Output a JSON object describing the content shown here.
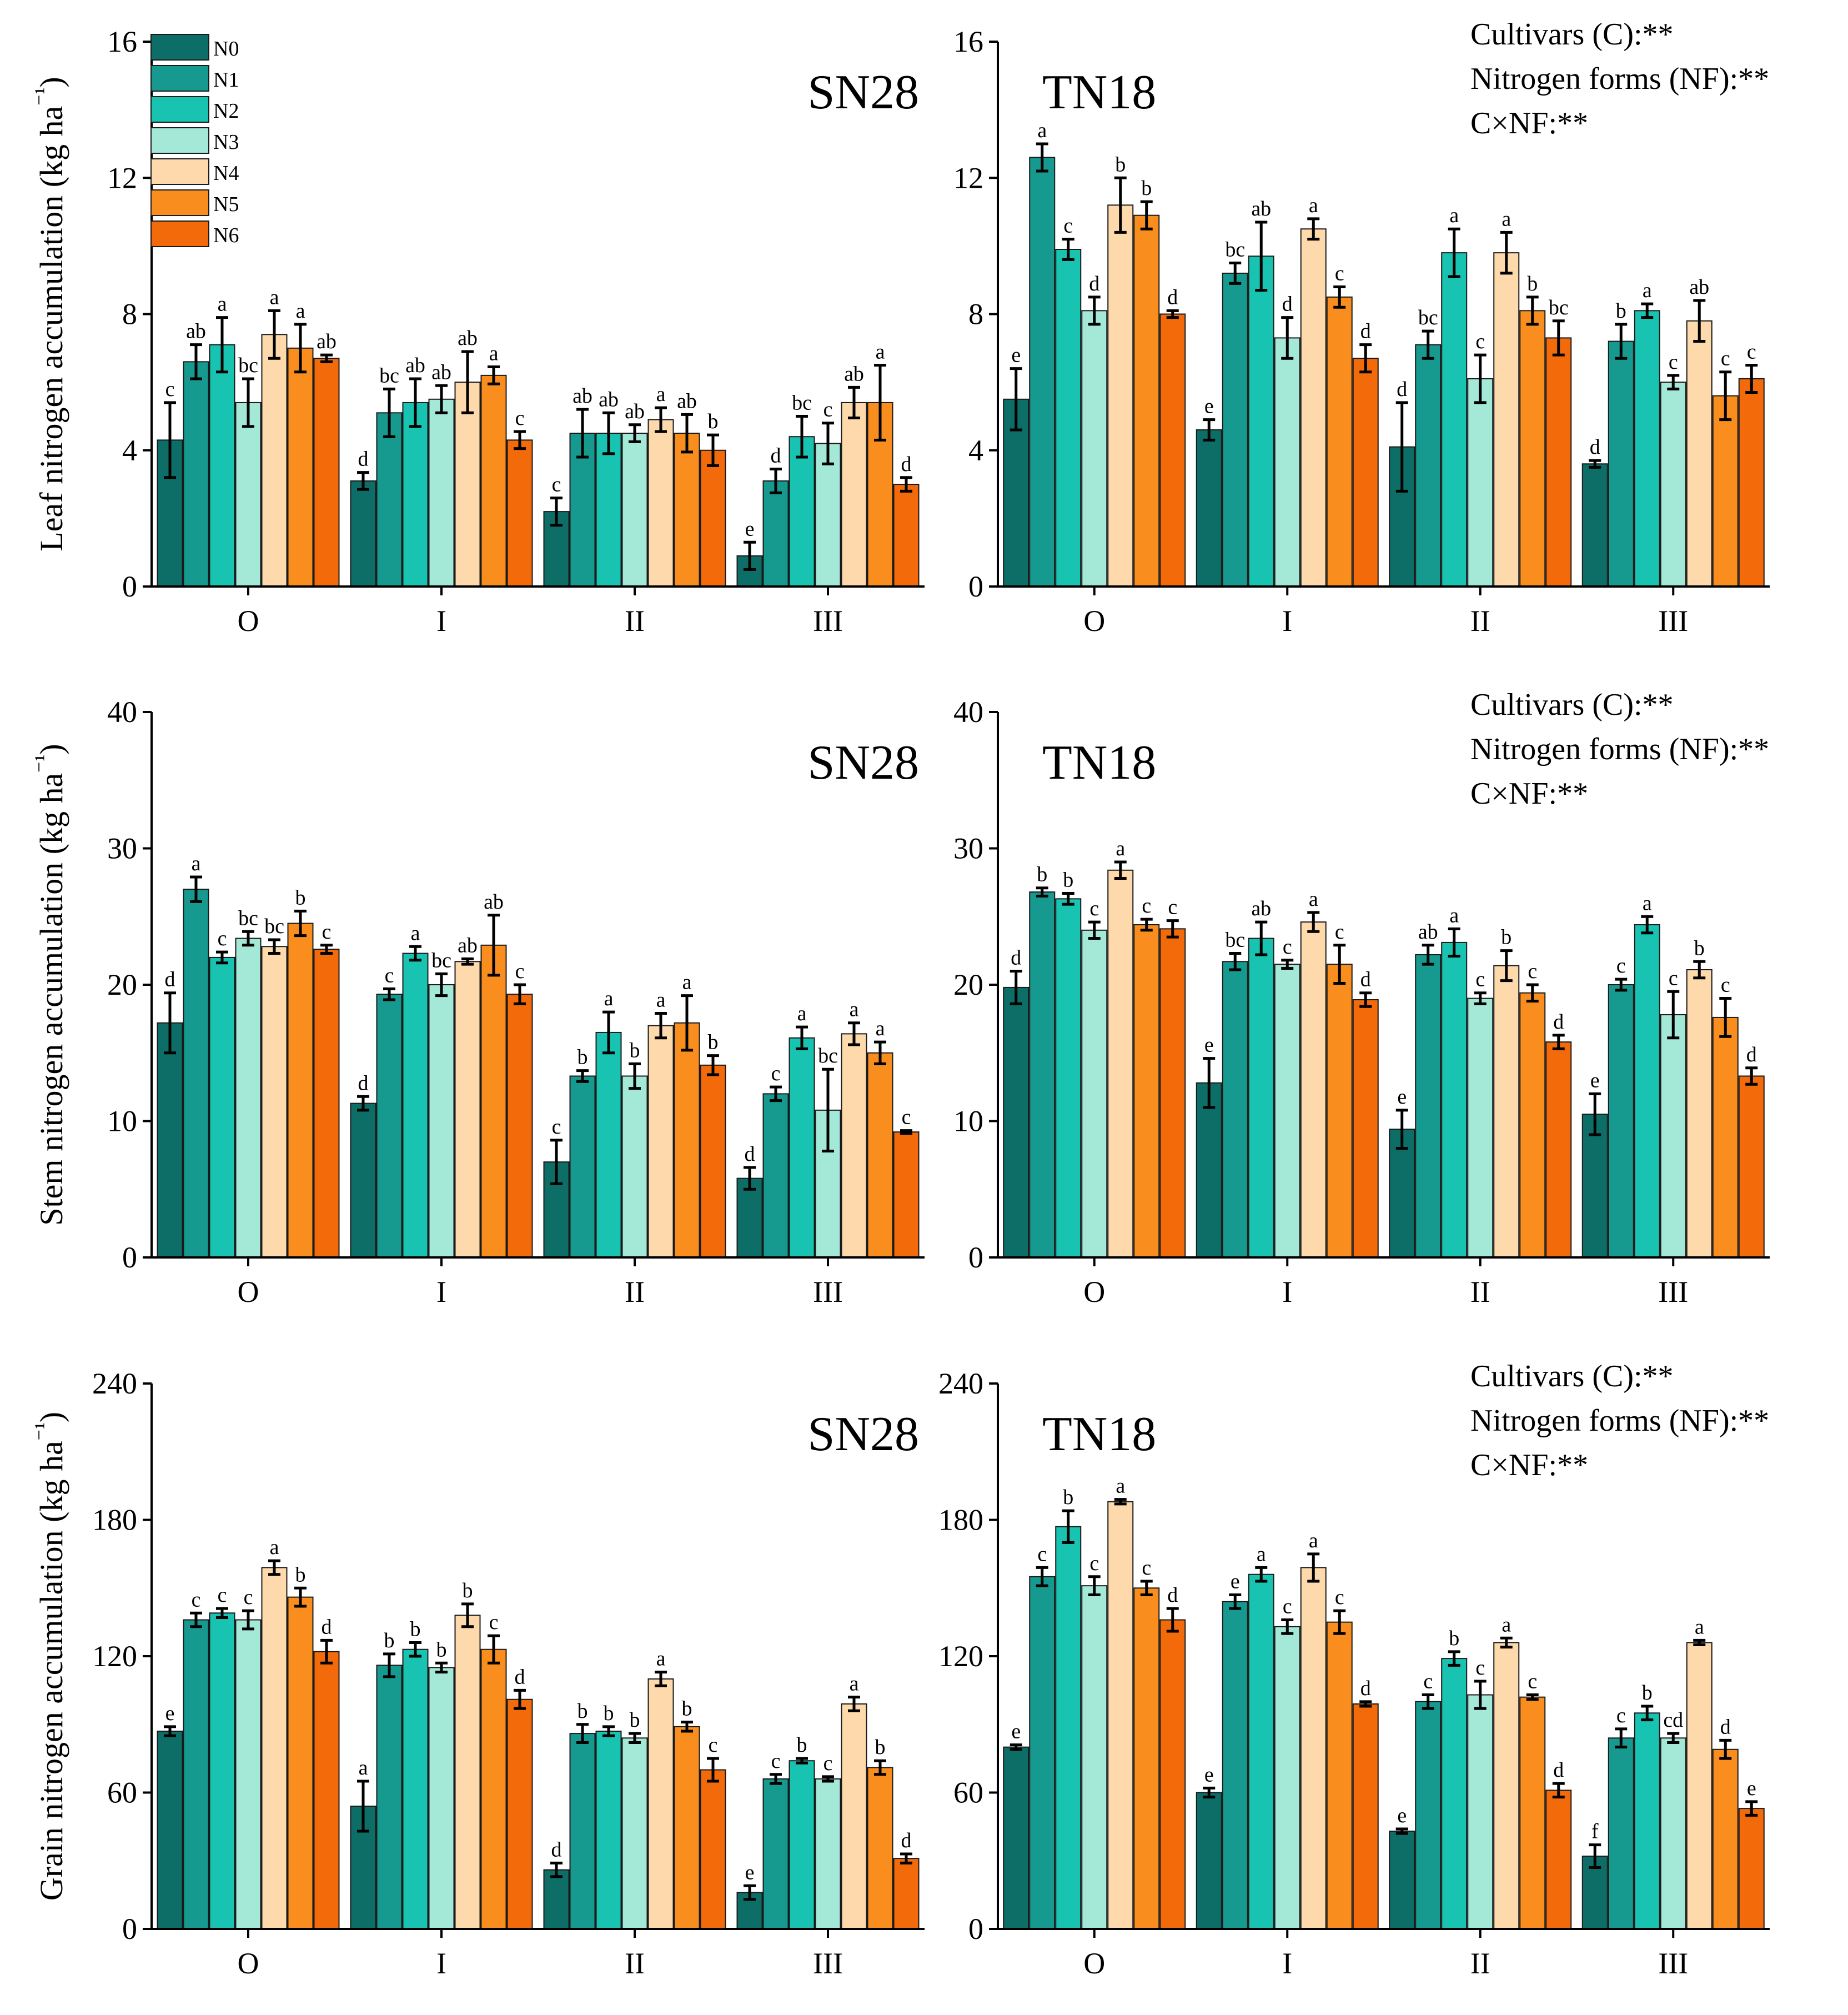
{
  "legend": [
    "N0",
    "N1",
    "N2",
    "N3",
    "N4",
    "N5",
    "N6"
  ],
  "colors": [
    "#0c6e66",
    "#169a90",
    "#19c3b1",
    "#a4e8d8",
    "#fdd9ab",
    "#f98e1e",
    "#f26a0a"
  ],
  "groups": [
    "O",
    "I",
    "II",
    "III"
  ],
  "stats": [
    "Cultivars (C):**",
    "Nitrogen forms (NF):**",
    "C×NF:**"
  ],
  "chart_data": [
    {
      "type": "bar",
      "row": 0,
      "cultivar": "SN28",
      "ylabel": "Leaf nitrogen accumulation (kg ha⁻¹)",
      "ylim": [
        0,
        16
      ],
      "yticks": [
        0,
        4,
        8,
        12,
        16
      ],
      "categories": [
        "O",
        "I",
        "II",
        "III"
      ],
      "series": [
        {
          "name": "N0",
          "values": [
            4.3,
            3.1,
            2.2,
            0.9
          ],
          "errors": [
            1.1,
            0.25,
            0.4,
            0.4
          ],
          "letters": [
            "c",
            "d",
            "c",
            "e"
          ]
        },
        {
          "name": "N1",
          "values": [
            6.6,
            5.1,
            4.5,
            3.1
          ],
          "errors": [
            0.5,
            0.7,
            0.7,
            0.35
          ],
          "letters": [
            "ab",
            "bc",
            "ab",
            "d"
          ]
        },
        {
          "name": "N2",
          "values": [
            7.1,
            5.4,
            4.5,
            4.4
          ],
          "errors": [
            0.8,
            0.7,
            0.6,
            0.6
          ],
          "letters": [
            "a",
            "ab",
            "ab",
            "bc"
          ]
        },
        {
          "name": "N3",
          "values": [
            5.4,
            5.5,
            4.5,
            4.2
          ],
          "errors": [
            0.7,
            0.4,
            0.25,
            0.6
          ],
          "letters": [
            "bc",
            "ab",
            "ab",
            "c"
          ]
        },
        {
          "name": "N4",
          "values": [
            7.4,
            6.0,
            4.9,
            5.4
          ],
          "errors": [
            0.7,
            0.9,
            0.35,
            0.45
          ],
          "letters": [
            "a",
            "ab",
            "a",
            "ab"
          ]
        },
        {
          "name": "N5",
          "values": [
            7.0,
            6.2,
            4.5,
            5.4
          ],
          "errors": [
            0.7,
            0.25,
            0.55,
            1.1
          ],
          "letters": [
            "a",
            "a",
            "ab",
            "a"
          ]
        },
        {
          "name": "N6",
          "values": [
            6.7,
            4.3,
            4.0,
            3.0
          ],
          "errors": [
            0.1,
            0.25,
            0.45,
            0.2
          ],
          "letters": [
            "ab",
            "c",
            "b",
            "d"
          ]
        }
      ]
    },
    {
      "type": "bar",
      "row": 0,
      "cultivar": "TN18",
      "ylabel": "",
      "ylim": [
        0,
        16
      ],
      "yticks": [
        0,
        4,
        8,
        12,
        16
      ],
      "categories": [
        "O",
        "I",
        "II",
        "III"
      ],
      "series": [
        {
          "name": "N0",
          "values": [
            5.5,
            4.6,
            4.1,
            3.6
          ],
          "errors": [
            0.9,
            0.3,
            1.3,
            0.1
          ],
          "letters": [
            "e",
            "e",
            "d",
            "d"
          ]
        },
        {
          "name": "N1",
          "values": [
            12.6,
            9.2,
            7.1,
            7.2
          ],
          "errors": [
            0.4,
            0.3,
            0.4,
            0.5
          ],
          "letters": [
            "a",
            "bc",
            "bc",
            "b"
          ]
        },
        {
          "name": "N2",
          "values": [
            9.9,
            9.7,
            9.8,
            8.1
          ],
          "errors": [
            0.3,
            1.0,
            0.7,
            0.2
          ],
          "letters": [
            "c",
            "ab",
            "a",
            "a"
          ]
        },
        {
          "name": "N3",
          "values": [
            8.1,
            7.3,
            6.1,
            6.0
          ],
          "errors": [
            0.4,
            0.6,
            0.7,
            0.2
          ],
          "letters": [
            "d",
            "d",
            "c",
            "c"
          ]
        },
        {
          "name": "N4",
          "values": [
            11.2,
            10.5,
            9.8,
            7.8
          ],
          "errors": [
            0.8,
            0.3,
            0.6,
            0.6
          ],
          "letters": [
            "b",
            "a",
            "a",
            "ab"
          ]
        },
        {
          "name": "N5",
          "values": [
            10.9,
            8.5,
            8.1,
            5.6
          ],
          "errors": [
            0.4,
            0.3,
            0.4,
            0.7
          ],
          "letters": [
            "b",
            "c",
            "b",
            "c"
          ]
        },
        {
          "name": "N6",
          "values": [
            8.0,
            6.7,
            7.3,
            6.1
          ],
          "errors": [
            0.1,
            0.4,
            0.5,
            0.4
          ],
          "letters": [
            "d",
            "d",
            "bc",
            "c"
          ]
        }
      ]
    },
    {
      "type": "bar",
      "row": 1,
      "cultivar": "SN28",
      "ylabel": "Stem nitrogen accumulation (kg ha⁻¹)",
      "ylim": [
        0,
        40
      ],
      "yticks": [
        0,
        10,
        20,
        30,
        40
      ],
      "categories": [
        "O",
        "I",
        "II",
        "III"
      ],
      "series": [
        {
          "name": "N0",
          "values": [
            17.2,
            11.3,
            7.0,
            5.8
          ],
          "errors": [
            2.2,
            0.5,
            1.6,
            0.8
          ],
          "letters": [
            "d",
            "d",
            "c",
            "d"
          ]
        },
        {
          "name": "N1",
          "values": [
            27.0,
            19.3,
            13.3,
            12.0
          ],
          "errors": [
            0.9,
            0.4,
            0.4,
            0.5
          ],
          "letters": [
            "a",
            "c",
            "b",
            "c"
          ]
        },
        {
          "name": "N2",
          "values": [
            22.0,
            22.3,
            16.5,
            16.1
          ],
          "errors": [
            0.4,
            0.5,
            1.5,
            0.8
          ],
          "letters": [
            "c",
            "a",
            "a",
            "a"
          ]
        },
        {
          "name": "N3",
          "values": [
            23.4,
            20.0,
            13.3,
            10.8
          ],
          "errors": [
            0.5,
            0.8,
            0.9,
            3.0
          ],
          "letters": [
            "bc",
            "bc",
            "b",
            "bc"
          ]
        },
        {
          "name": "N4",
          "values": [
            22.8,
            21.7,
            17.0,
            16.4
          ],
          "errors": [
            0.5,
            0.2,
            0.9,
            0.8
          ],
          "letters": [
            "bc",
            "ab",
            "a",
            "a"
          ]
        },
        {
          "name": "N5",
          "values": [
            24.5,
            22.9,
            17.2,
            15.0
          ],
          "errors": [
            0.9,
            2.2,
            2.0,
            0.8
          ],
          "letters": [
            "b",
            "ab",
            "a",
            "a"
          ]
        },
        {
          "name": "N6",
          "values": [
            22.6,
            19.3,
            14.1,
            9.2
          ],
          "errors": [
            0.3,
            0.7,
            0.7,
            0.1
          ],
          "letters": [
            "c",
            "c",
            "b",
            "c"
          ]
        }
      ]
    },
    {
      "type": "bar",
      "row": 1,
      "cultivar": "TN18",
      "ylabel": "",
      "ylim": [
        0,
        40
      ],
      "yticks": [
        0,
        10,
        20,
        30,
        40
      ],
      "categories": [
        "O",
        "I",
        "II",
        "III"
      ],
      "series": [
        {
          "name": "N0",
          "values": [
            19.8,
            12.8,
            9.4,
            10.5
          ],
          "errors": [
            1.2,
            1.8,
            1.4,
            1.5
          ],
          "letters": [
            "d",
            "e",
            "e",
            "e"
          ]
        },
        {
          "name": "N1",
          "values": [
            26.8,
            21.7,
            22.2,
            20.0
          ],
          "errors": [
            0.3,
            0.6,
            0.7,
            0.4
          ],
          "letters": [
            "b",
            "bc",
            "ab",
            "c"
          ]
        },
        {
          "name": "N2",
          "values": [
            26.3,
            23.4,
            23.1,
            24.4
          ],
          "errors": [
            0.4,
            1.2,
            1.0,
            0.6
          ],
          "letters": [
            "b",
            "ab",
            "a",
            "a"
          ]
        },
        {
          "name": "N3",
          "values": [
            24.0,
            21.5,
            19.0,
            17.8
          ],
          "errors": [
            0.6,
            0.3,
            0.4,
            1.7
          ],
          "letters": [
            "c",
            "c",
            "c",
            "c"
          ]
        },
        {
          "name": "N4",
          "values": [
            28.4,
            24.6,
            21.4,
            21.1
          ],
          "errors": [
            0.6,
            0.7,
            1.1,
            0.6
          ],
          "letters": [
            "a",
            "a",
            "b",
            "b"
          ]
        },
        {
          "name": "N5",
          "values": [
            24.4,
            21.5,
            19.4,
            17.6
          ],
          "errors": [
            0.4,
            1.4,
            0.6,
            1.4
          ],
          "letters": [
            "c",
            "c",
            "c",
            "c"
          ]
        },
        {
          "name": "N6",
          "values": [
            24.1,
            18.9,
            15.8,
            13.3
          ],
          "errors": [
            0.6,
            0.5,
            0.5,
            0.6
          ],
          "letters": [
            "c",
            "d",
            "d",
            "d"
          ]
        }
      ]
    },
    {
      "type": "bar",
      "row": 2,
      "cultivar": "SN28",
      "ylabel": "Grain nitrogen accumulation (kg ha⁻¹)",
      "ylim": [
        0,
        240
      ],
      "yticks": [
        0,
        60,
        120,
        180,
        240
      ],
      "categories": [
        "O",
        "I",
        "II",
        "III"
      ],
      "series": [
        {
          "name": "N0",
          "values": [
            87,
            54,
            26,
            16
          ],
          "errors": [
            2,
            11,
            3,
            3
          ],
          "letters": [
            "e",
            "a",
            "d",
            "e"
          ]
        },
        {
          "name": "N1",
          "values": [
            136,
            116,
            86,
            66
          ],
          "errors": [
            3,
            5,
            4,
            2
          ],
          "letters": [
            "c",
            "b",
            "b",
            "c"
          ]
        },
        {
          "name": "N2",
          "values": [
            139,
            123,
            87,
            74
          ],
          "errors": [
            2,
            3,
            2,
            1
          ],
          "letters": [
            "c",
            "b",
            "b",
            "b"
          ]
        },
        {
          "name": "N3",
          "values": [
            136,
            115,
            84,
            66
          ],
          "errors": [
            4,
            2,
            2,
            1
          ],
          "letters": [
            "c",
            "b",
            "b",
            "c"
          ]
        },
        {
          "name": "N4",
          "values": [
            159,
            138,
            110,
            99
          ],
          "errors": [
            3,
            5,
            3,
            3
          ],
          "letters": [
            "a",
            "b",
            "a",
            "a"
          ]
        },
        {
          "name": "N5",
          "values": [
            146,
            123,
            89,
            71
          ],
          "errors": [
            4,
            6,
            2,
            3
          ],
          "letters": [
            "b",
            "c",
            "b",
            "b"
          ]
        },
        {
          "name": "N6",
          "values": [
            122,
            101,
            70,
            31
          ],
          "errors": [
            5,
            4,
            5,
            2
          ],
          "letters": [
            "d",
            "d",
            "c",
            "d"
          ]
        }
      ]
    },
    {
      "type": "bar",
      "row": 2,
      "cultivar": "TN18",
      "ylabel": "",
      "ylim": [
        0,
        240
      ],
      "yticks": [
        0,
        60,
        120,
        180,
        240
      ],
      "categories": [
        "O",
        "I",
        "II",
        "III"
      ],
      "series": [
        {
          "name": "N0",
          "values": [
            80,
            60,
            43,
            32
          ],
          "errors": [
            1,
            2,
            1,
            5
          ],
          "letters": [
            "e",
            "e",
            "e",
            "f"
          ]
        },
        {
          "name": "N1",
          "values": [
            155,
            144,
            100,
            84
          ],
          "errors": [
            4,
            3,
            3,
            4
          ],
          "letters": [
            "c",
            "e",
            "c",
            "c"
          ]
        },
        {
          "name": "N2",
          "values": [
            177,
            156,
            119,
            95
          ],
          "errors": [
            7,
            3,
            3,
            3
          ],
          "letters": [
            "b",
            "a",
            "b",
            "b"
          ]
        },
        {
          "name": "N3",
          "values": [
            151,
            133,
            103,
            84
          ],
          "errors": [
            4,
            3,
            6,
            2
          ],
          "letters": [
            "c",
            "c",
            "c",
            "cd"
          ]
        },
        {
          "name": "N4",
          "values": [
            188,
            159,
            126,
            126
          ],
          "errors": [
            1,
            6,
            2,
            1
          ],
          "letters": [
            "a",
            "a",
            "a",
            "a"
          ]
        },
        {
          "name": "N5",
          "values": [
            150,
            135,
            102,
            79
          ],
          "errors": [
            3,
            5,
            1,
            4
          ],
          "letters": [
            "c",
            "c",
            "c",
            "d"
          ]
        },
        {
          "name": "N6",
          "values": [
            136,
            99,
            61,
            53
          ],
          "errors": [
            5,
            1,
            3,
            3
          ],
          "letters": [
            "d",
            "d",
            "d",
            "e"
          ]
        }
      ]
    }
  ]
}
